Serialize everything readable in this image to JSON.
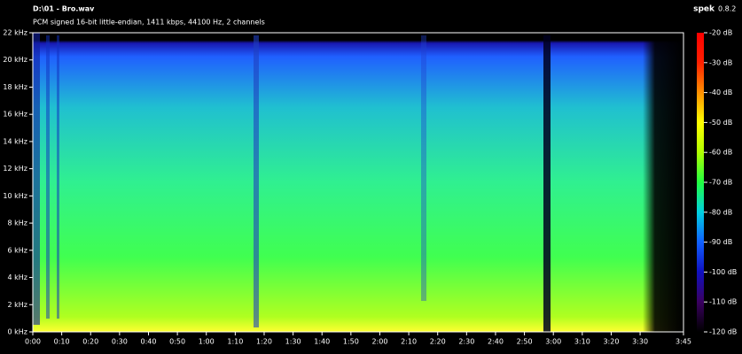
{
  "chart_data": {
    "type": "spectrogram",
    "title": "D:\\01 - Bro.wav",
    "subtitle": "PCM signed 16-bit little-endian, 1411 kbps, 44100 Hz, 2 channels",
    "brand": "spek",
    "version": "0.8.2",
    "xlim": [
      0,
      225
    ],
    "xticks": [
      {
        "value": 0,
        "label": "0:00"
      },
      {
        "value": 10,
        "label": "0:10"
      },
      {
        "value": 20,
        "label": "0:20"
      },
      {
        "value": 30,
        "label": "0:30"
      },
      {
        "value": 40,
        "label": "0:40"
      },
      {
        "value": 50,
        "label": "0:50"
      },
      {
        "value": 60,
        "label": "1:00"
      },
      {
        "value": 70,
        "label": "1:10"
      },
      {
        "value": 80,
        "label": "1:20"
      },
      {
        "value": 90,
        "label": "1:30"
      },
      {
        "value": 100,
        "label": "1:40"
      },
      {
        "value": 110,
        "label": "1:50"
      },
      {
        "value": 120,
        "label": "2:00"
      },
      {
        "value": 130,
        "label": "2:10"
      },
      {
        "value": 140,
        "label": "2:20"
      },
      {
        "value": 150,
        "label": "2:30"
      },
      {
        "value": 160,
        "label": "2:40"
      },
      {
        "value": 170,
        "label": "2:50"
      },
      {
        "value": 180,
        "label": "3:00"
      },
      {
        "value": 190,
        "label": "3:10"
      },
      {
        "value": 200,
        "label": "3:20"
      },
      {
        "value": 210,
        "label": "3:30"
      },
      {
        "value": 225,
        "label": "3:45"
      }
    ],
    "ylim": [
      0,
      22
    ],
    "yticks": [
      {
        "value": 0,
        "label": "0 kHz"
      },
      {
        "value": 2,
        "label": "2 kHz"
      },
      {
        "value": 4,
        "label": "4 kHz"
      },
      {
        "value": 6,
        "label": "6 kHz"
      },
      {
        "value": 8,
        "label": "8 kHz"
      },
      {
        "value": 10,
        "label": "10 kHz"
      },
      {
        "value": 12,
        "label": "12 kHz"
      },
      {
        "value": 14,
        "label": "14 kHz"
      },
      {
        "value": 16,
        "label": "16 kHz"
      },
      {
        "value": 18,
        "label": "18 kHz"
      },
      {
        "value": 20,
        "label": "20 kHz"
      },
      {
        "value": 22,
        "label": "22 kHz"
      }
    ],
    "zlim": [
      -120,
      -20
    ],
    "zticks": [
      {
        "value": -20,
        "label": "-20 dB"
      },
      {
        "value": -30,
        "label": "-30 dB"
      },
      {
        "value": -40,
        "label": "-40 dB"
      },
      {
        "value": -50,
        "label": "-50 dB"
      },
      {
        "value": -60,
        "label": "-60 dB"
      },
      {
        "value": -70,
        "label": "-70 dB"
      },
      {
        "value": -80,
        "label": "-80 dB"
      },
      {
        "value": -90,
        "label": "-90 dB"
      },
      {
        "value": -100,
        "label": "-100 dB"
      },
      {
        "value": -110,
        "label": "-110 dB"
      },
      {
        "value": -120,
        "label": "-120 dB"
      }
    ],
    "colormap": [
      "#000000",
      "#3a0060",
      "#1010c0",
      "#1060ff",
      "#00d0e0",
      "#20ff40",
      "#b0ff00",
      "#ffff00",
      "#ff9000",
      "#ff2000",
      "#ff0000"
    ]
  }
}
